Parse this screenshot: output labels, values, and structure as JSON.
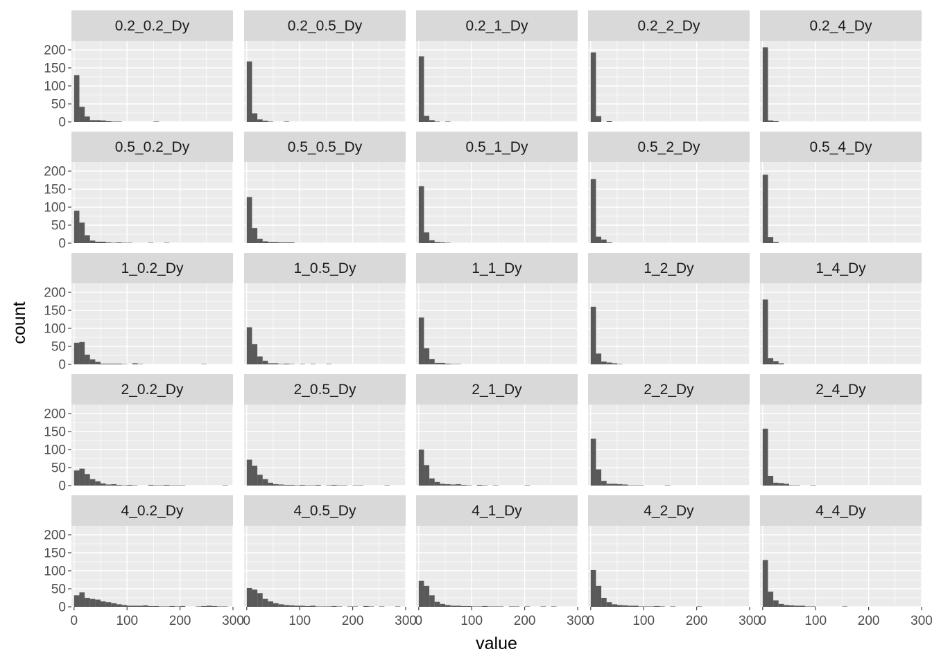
{
  "chart_data": {
    "type": "bar",
    "subtype": "faceted-histogram",
    "facet_layout": {
      "rows": 5,
      "cols": 5
    },
    "xlabel": "value",
    "ylabel": "count",
    "xlim": [
      -5,
      300
    ],
    "ylim": [
      0,
      225
    ],
    "x_ticks": [
      0,
      100,
      200,
      300
    ],
    "y_ticks": [
      0,
      50,
      100,
      150,
      200
    ],
    "x_tick_labels": [
      "0",
      "100",
      "200",
      "300"
    ],
    "y_tick_labels": [
      "0",
      "50",
      "100",
      "150",
      "200"
    ],
    "bin_width": 10,
    "bin_starts": [
      0,
      10,
      20,
      30,
      40,
      50,
      60,
      70,
      80,
      90,
      100,
      110,
      120,
      130,
      140,
      150,
      160,
      170,
      180,
      190,
      200,
      210,
      220,
      230,
      240,
      250,
      260,
      270,
      280,
      290
    ],
    "grid": true,
    "colors": {
      "panel_background": "#ebebeb",
      "grid": "#ffffff",
      "strip_background": "#d9d9d9",
      "bar_fill": "#595959",
      "tick_text": "#4d4d4d"
    },
    "facets": [
      {
        "label": "0.2_0.2_Dy",
        "counts": [
          130,
          42,
          15,
          5,
          5,
          4,
          2,
          1,
          1,
          0,
          0,
          0,
          0,
          0,
          0,
          1,
          0,
          0,
          0,
          0,
          0,
          0,
          0,
          0,
          0,
          0,
          0,
          0,
          0,
          0
        ]
      },
      {
        "label": "0.2_0.5_Dy",
        "counts": [
          168,
          24,
          7,
          3,
          1,
          0,
          0,
          1,
          0,
          0,
          0,
          0,
          0,
          0,
          0,
          0,
          0,
          0,
          0,
          0,
          0,
          0,
          0,
          0,
          0,
          0,
          0,
          0,
          0,
          0
        ]
      },
      {
        "label": "0.2_1_Dy",
        "counts": [
          182,
          17,
          5,
          1,
          0,
          1,
          0,
          0,
          0,
          0,
          0,
          0,
          0,
          0,
          0,
          0,
          0,
          0,
          0,
          0,
          0,
          0,
          0,
          0,
          0,
          0,
          0,
          0,
          0,
          0
        ]
      },
      {
        "label": "0.2_2_Dy",
        "counts": [
          193,
          16,
          0,
          2,
          0,
          0,
          0,
          0,
          0,
          0,
          0,
          0,
          0,
          0,
          0,
          0,
          0,
          0,
          0,
          0,
          0,
          0,
          0,
          0,
          0,
          0,
          0,
          0,
          0,
          0
        ]
      },
      {
        "label": "0.2_4_Dy",
        "counts": [
          207,
          4,
          2,
          0,
          0,
          0,
          0,
          0,
          0,
          0,
          0,
          0,
          0,
          0,
          0,
          0,
          0,
          0,
          0,
          0,
          0,
          0,
          0,
          0,
          0,
          0,
          0,
          0,
          0,
          0
        ]
      },
      {
        "label": "0.5_0.2_Dy",
        "counts": [
          90,
          57,
          22,
          7,
          4,
          4,
          2,
          1,
          2,
          1,
          1,
          0,
          0,
          0,
          1,
          0,
          0,
          1,
          0,
          0,
          0,
          0,
          0,
          0,
          0,
          0,
          0,
          0,
          0,
          0
        ]
      },
      {
        "label": "0.5_0.5_Dy",
        "counts": [
          128,
          42,
          12,
          5,
          3,
          3,
          2,
          2,
          2,
          0,
          0,
          0,
          0,
          0,
          0,
          0,
          0,
          0,
          0,
          0,
          0,
          0,
          0,
          0,
          0,
          0,
          0,
          0,
          0,
          0
        ]
      },
      {
        "label": "0.5_1_Dy",
        "counts": [
          158,
          30,
          8,
          3,
          2,
          1,
          0,
          0,
          0,
          0,
          0,
          0,
          0,
          0,
          0,
          0,
          0,
          0,
          0,
          0,
          0,
          0,
          0,
          0,
          0,
          0,
          0,
          0,
          0,
          0
        ]
      },
      {
        "label": "0.5_2_Dy",
        "counts": [
          178,
          18,
          10,
          2,
          0,
          0,
          0,
          0,
          0,
          0,
          0,
          0,
          0,
          0,
          0,
          0,
          0,
          0,
          0,
          0,
          0,
          0,
          0,
          0,
          0,
          0,
          0,
          0,
          0,
          0
        ]
      },
      {
        "label": "0.5_4_Dy",
        "counts": [
          190,
          17,
          3,
          0,
          0,
          0,
          0,
          0,
          0,
          0,
          0,
          0,
          0,
          0,
          0,
          0,
          0,
          0,
          0,
          0,
          0,
          0,
          0,
          0,
          0,
          0,
          0,
          0,
          0,
          0
        ]
      },
      {
        "label": "1_0.2_Dy",
        "counts": [
          60,
          62,
          27,
          14,
          7,
          2,
          2,
          2,
          2,
          1,
          0,
          3,
          1,
          0,
          0,
          0,
          0,
          0,
          0,
          0,
          0,
          0,
          0,
          0,
          1,
          0,
          0,
          0,
          0,
          0
        ]
      },
      {
        "label": "1_0.5_Dy",
        "counts": [
          103,
          56,
          22,
          10,
          3,
          3,
          1,
          2,
          1,
          0,
          1,
          0,
          1,
          0,
          0,
          1,
          0,
          0,
          0,
          0,
          0,
          0,
          0,
          0,
          0,
          0,
          0,
          0,
          0,
          0
        ]
      },
      {
        "label": "1_1_Dy",
        "counts": [
          130,
          45,
          15,
          4,
          4,
          2,
          1,
          1,
          0,
          0,
          0,
          0,
          0,
          0,
          0,
          0,
          0,
          0,
          0,
          0,
          0,
          0,
          0,
          0,
          0,
          0,
          0,
          0,
          0,
          0
        ]
      },
      {
        "label": "1_2_Dy",
        "counts": [
          160,
          30,
          8,
          5,
          3,
          1,
          0,
          0,
          0,
          0,
          0,
          0,
          0,
          0,
          0,
          0,
          0,
          0,
          0,
          0,
          0,
          0,
          0,
          0,
          0,
          0,
          0,
          0,
          0,
          0
        ]
      },
      {
        "label": "1_4_Dy",
        "counts": [
          180,
          17,
          9,
          3,
          0,
          0,
          0,
          0,
          0,
          0,
          0,
          0,
          0,
          0,
          0,
          0,
          0,
          0,
          0,
          0,
          0,
          0,
          0,
          0,
          0,
          0,
          0,
          0,
          0,
          0
        ]
      },
      {
        "label": "2_0.2_Dy",
        "counts": [
          42,
          47,
          32,
          18,
          12,
          6,
          3,
          4,
          2,
          1,
          2,
          1,
          0,
          0,
          2,
          1,
          1,
          2,
          1,
          1,
          1,
          0,
          0,
          0,
          0,
          0,
          0,
          0,
          1,
          0
        ]
      },
      {
        "label": "2_0.5_Dy",
        "counts": [
          72,
          55,
          30,
          18,
          8,
          4,
          3,
          2,
          2,
          1,
          2,
          1,
          1,
          2,
          0,
          1,
          2,
          1,
          1,
          0,
          1,
          1,
          0,
          0,
          0,
          0,
          1,
          0,
          0,
          0
        ]
      },
      {
        "label": "2_1_Dy",
        "counts": [
          100,
          57,
          20,
          10,
          5,
          4,
          3,
          4,
          2,
          1,
          0,
          2,
          1,
          0,
          1,
          0,
          0,
          0,
          0,
          0,
          1,
          0,
          0,
          0,
          0,
          0,
          0,
          0,
          0,
          0
        ]
      },
      {
        "label": "2_2_Dy",
        "counts": [
          130,
          45,
          13,
          5,
          5,
          4,
          3,
          1,
          1,
          1,
          0,
          0,
          0,
          0,
          1,
          0,
          0,
          0,
          0,
          0,
          0,
          0,
          0,
          0,
          0,
          0,
          0,
          0,
          0,
          0
        ]
      },
      {
        "label": "2_4_Dy",
        "counts": [
          158,
          27,
          8,
          7,
          5,
          1,
          1,
          0,
          0,
          1,
          0,
          0,
          0,
          0,
          0,
          0,
          0,
          0,
          0,
          0,
          0,
          0,
          0,
          0,
          0,
          0,
          0,
          0,
          0,
          0
        ]
      },
      {
        "label": "4_0.2_Dy",
        "counts": [
          32,
          40,
          25,
          22,
          20,
          15,
          13,
          10,
          7,
          5,
          3,
          3,
          3,
          4,
          2,
          2,
          1,
          1,
          2,
          1,
          2,
          0,
          0,
          1,
          2,
          3,
          2,
          1,
          1,
          0
        ]
      },
      {
        "label": "4_0.5_Dy",
        "counts": [
          52,
          48,
          38,
          22,
          15,
          10,
          7,
          5,
          4,
          3,
          3,
          2,
          3,
          1,
          1,
          1,
          2,
          1,
          0,
          1,
          1,
          0,
          2,
          1,
          0,
          1,
          0,
          0,
          1,
          0
        ]
      },
      {
        "label": "4_1_Dy",
        "counts": [
          72,
          58,
          32,
          14,
          8,
          5,
          3,
          3,
          2,
          2,
          1,
          1,
          2,
          1,
          1,
          1,
          0,
          1,
          1,
          0,
          1,
          0,
          0,
          1,
          0,
          1,
          0,
          0,
          0,
          0
        ]
      },
      {
        "label": "4_2_Dy",
        "counts": [
          102,
          58,
          25,
          13,
          7,
          5,
          4,
          3,
          3,
          1,
          1,
          1,
          2,
          1,
          0,
          1,
          0,
          0,
          0,
          0,
          1,
          0,
          0,
          0,
          0,
          0,
          0,
          0,
          0,
          0
        ]
      },
      {
        "label": "4_4_Dy",
        "counts": [
          130,
          42,
          18,
          8,
          5,
          4,
          3,
          3,
          1,
          1,
          0,
          0,
          0,
          0,
          0,
          1,
          0,
          0,
          0,
          0,
          0,
          0,
          0,
          0,
          0,
          0,
          0,
          0,
          0,
          0
        ]
      }
    ]
  }
}
